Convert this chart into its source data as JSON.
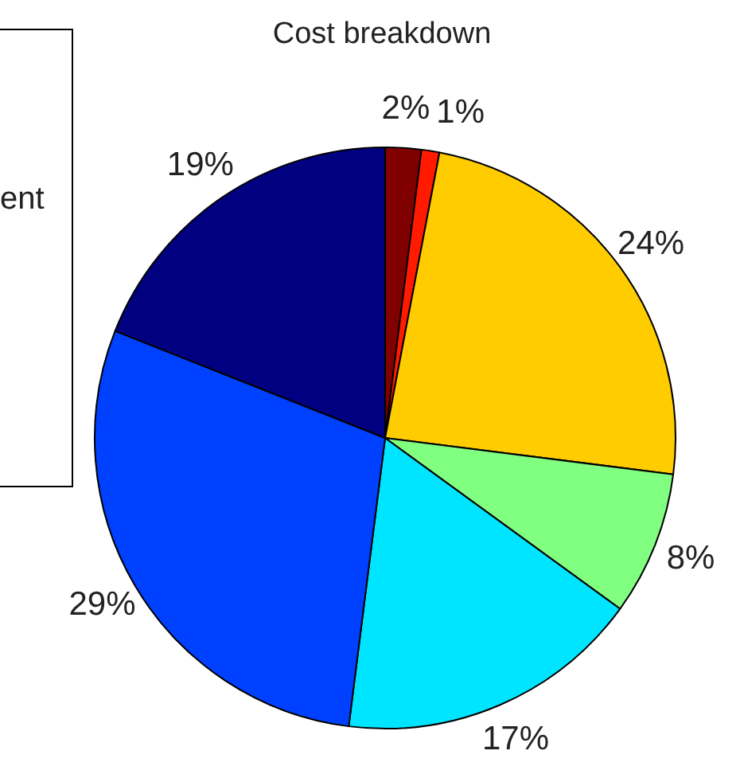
{
  "chart_data": {
    "type": "pie",
    "title": "Cost breakdown",
    "categories": [
      null,
      null,
      null,
      null,
      null,
      null,
      null
    ],
    "values": [
      2,
      1,
      24,
      8,
      17,
      29,
      19
    ],
    "value_labels": [
      "2%",
      "1%",
      "24%",
      "8%",
      "17%",
      "29%",
      "19%"
    ],
    "colors": [
      "#800000",
      "#ff1a00",
      "#ffcc00",
      "#80ff80",
      "#00e5ff",
      "#0040ff",
      "#000080"
    ],
    "annotations": [
      "ent"
    ],
    "legend": false
  }
}
